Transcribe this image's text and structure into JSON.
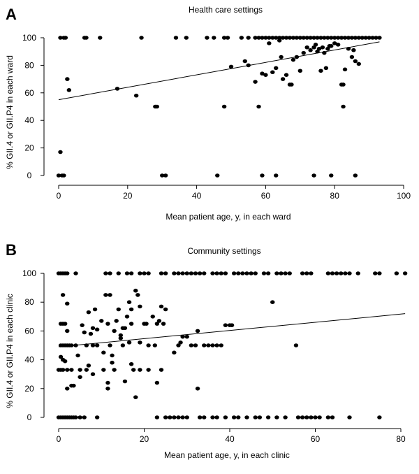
{
  "chart_data": [
    {
      "panel": "A",
      "type": "scatter",
      "title": "Health care settings",
      "xlabel": "Mean patient age, y, in each ward",
      "ylabel": "% GII.4 or GII.P4 in each ward",
      "xlim": [
        0,
        100
      ],
      "ylim": [
        0,
        100
      ],
      "xticks": [
        0,
        20,
        40,
        60,
        80,
        100
      ],
      "yticks": [
        0,
        20,
        40,
        60,
        80,
        100
      ],
      "grid": false,
      "trendline": {
        "x": [
          0,
          93
        ],
        "y": [
          55,
          97
        ]
      },
      "points": [
        [
          0.5,
          100
        ],
        [
          1.5,
          100
        ],
        [
          2,
          100
        ],
        [
          7.5,
          100
        ],
        [
          8,
          100
        ],
        [
          12,
          100
        ],
        [
          24,
          100
        ],
        [
          34,
          100
        ],
        [
          37,
          100
        ],
        [
          43,
          100
        ],
        [
          45,
          100
        ],
        [
          48,
          100
        ],
        [
          49,
          100
        ],
        [
          53,
          100
        ],
        [
          55,
          100
        ],
        [
          57,
          100
        ],
        [
          58,
          100
        ],
        [
          59,
          100
        ],
        [
          60,
          100
        ],
        [
          61,
          100
        ],
        [
          62,
          100
        ],
        [
          63,
          100
        ],
        [
          64,
          100
        ],
        [
          65,
          100
        ],
        [
          66,
          100
        ],
        [
          67,
          100
        ],
        [
          68,
          100
        ],
        [
          69,
          100
        ],
        [
          70,
          100
        ],
        [
          71,
          100
        ],
        [
          72,
          100
        ],
        [
          73,
          100
        ],
        [
          74,
          100
        ],
        [
          75,
          100
        ],
        [
          76,
          100
        ],
        [
          77,
          100
        ],
        [
          78,
          100
        ],
        [
          79,
          100
        ],
        [
          80,
          100
        ],
        [
          81,
          100
        ],
        [
          82,
          100
        ],
        [
          83,
          100
        ],
        [
          84,
          100
        ],
        [
          85,
          100
        ],
        [
          86,
          100
        ],
        [
          87,
          100
        ],
        [
          88,
          100
        ],
        [
          89,
          100
        ],
        [
          90,
          100
        ],
        [
          91,
          100
        ],
        [
          92,
          100
        ],
        [
          93,
          100
        ],
        [
          2.5,
          70
        ],
        [
          3,
          62
        ],
        [
          0.5,
          17
        ],
        [
          17,
          63
        ],
        [
          22.5,
          58
        ],
        [
          28,
          50
        ],
        [
          28.5,
          50
        ],
        [
          48,
          50
        ],
        [
          50,
          79
        ],
        [
          54,
          83
        ],
        [
          55,
          80
        ],
        [
          57,
          68
        ],
        [
          58,
          50
        ],
        [
          59,
          74
        ],
        [
          60,
          73
        ],
        [
          61,
          96
        ],
        [
          62,
          75
        ],
        [
          63,
          78
        ],
        [
          64,
          98
        ],
        [
          64.5,
          86
        ],
        [
          65,
          70
        ],
        [
          66,
          73
        ],
        [
          67,
          66
        ],
        [
          67.5,
          66
        ],
        [
          68,
          84
        ],
        [
          69,
          86
        ],
        [
          70,
          76
        ],
        [
          71,
          89
        ],
        [
          72,
          93
        ],
        [
          73,
          91
        ],
        [
          74,
          93
        ],
        [
          74.5,
          95
        ],
        [
          75,
          90
        ],
        [
          75.5,
          92
        ],
        [
          76,
          76
        ],
        [
          76.5,
          93
        ],
        [
          77,
          89
        ],
        [
          77.5,
          78
        ],
        [
          78,
          92
        ],
        [
          78.5,
          94
        ],
        [
          79,
          94
        ],
        [
          80,
          96
        ],
        [
          81,
          95
        ],
        [
          82,
          66
        ],
        [
          82.5,
          66
        ],
        [
          82.5,
          50
        ],
        [
          83,
          77
        ],
        [
          84,
          92
        ],
        [
          85,
          86
        ],
        [
          85.5,
          91
        ],
        [
          86,
          83
        ],
        [
          87,
          81
        ],
        [
          0,
          0
        ],
        [
          1,
          0
        ],
        [
          1.5,
          0
        ],
        [
          30,
          0
        ],
        [
          31,
          0
        ],
        [
          46,
          0
        ],
        [
          59,
          0
        ],
        [
          63,
          0
        ],
        [
          74,
          0
        ],
        [
          79,
          0
        ],
        [
          86,
          0
        ]
      ]
    },
    {
      "panel": "B",
      "type": "scatter",
      "title": "Community settings",
      "xlabel": "Mean patient age, y, in each clinic",
      "ylabel": "% GII.4 or GII.P4 in each clinic",
      "xlim": [
        0,
        80
      ],
      "ylim": [
        0,
        100
      ],
      "xticks": [
        0,
        20,
        40,
        60,
        80
      ],
      "yticks": [
        0,
        20,
        40,
        60,
        80,
        100
      ],
      "grid": false,
      "trendline": {
        "x": [
          0,
          81
        ],
        "y": [
          49,
          72
        ]
      },
      "points": [
        [
          0,
          100
        ],
        [
          0.5,
          100
        ],
        [
          1,
          100
        ],
        [
          1.5,
          100
        ],
        [
          2,
          100
        ],
        [
          4,
          100
        ],
        [
          11,
          100
        ],
        [
          12,
          100
        ],
        [
          14,
          100
        ],
        [
          16,
          100
        ],
        [
          17,
          100
        ],
        [
          19,
          100
        ],
        [
          20,
          100
        ],
        [
          21,
          100
        ],
        [
          24,
          100
        ],
        [
          25,
          100
        ],
        [
          27,
          100
        ],
        [
          28,
          100
        ],
        [
          29,
          100
        ],
        [
          30,
          100
        ],
        [
          31,
          100
        ],
        [
          32,
          100
        ],
        [
          33,
          100
        ],
        [
          34,
          100
        ],
        [
          36,
          100
        ],
        [
          37,
          100
        ],
        [
          38,
          100
        ],
        [
          39,
          100
        ],
        [
          41,
          100
        ],
        [
          42,
          100
        ],
        [
          43,
          100
        ],
        [
          44,
          100
        ],
        [
          45,
          100
        ],
        [
          46,
          100
        ],
        [
          48,
          100
        ],
        [
          49,
          100
        ],
        [
          51,
          100
        ],
        [
          52,
          100
        ],
        [
          53,
          100
        ],
        [
          54,
          100
        ],
        [
          57,
          100
        ],
        [
          58,
          100
        ],
        [
          59,
          100
        ],
        [
          63,
          100
        ],
        [
          64,
          100
        ],
        [
          65,
          100
        ],
        [
          66,
          100
        ],
        [
          67,
          100
        ],
        [
          68,
          100
        ],
        [
          70,
          100
        ],
        [
          74,
          100
        ],
        [
          75,
          100
        ],
        [
          79,
          100
        ],
        [
          81,
          100
        ],
        [
          1,
          85
        ],
        [
          2,
          79
        ],
        [
          0.5,
          65
        ],
        [
          1,
          65
        ],
        [
          1.5,
          65
        ],
        [
          2,
          60
        ],
        [
          0.5,
          50
        ],
        [
          1,
          50
        ],
        [
          1.5,
          50
        ],
        [
          2,
          50
        ],
        [
          2.5,
          50
        ],
        [
          3,
          50
        ],
        [
          0.5,
          42
        ],
        [
          1,
          40
        ],
        [
          1.5,
          39
        ],
        [
          0,
          33
        ],
        [
          0.5,
          33
        ],
        [
          1,
          33
        ],
        [
          2,
          33
        ],
        [
          3,
          33
        ],
        [
          2,
          20
        ],
        [
          3,
          22
        ],
        [
          3.5,
          22
        ],
        [
          4,
          50
        ],
        [
          4.5,
          43
        ],
        [
          5,
          33
        ],
        [
          5,
          28
        ],
        [
          5.5,
          64
        ],
        [
          6,
          59
        ],
        [
          6.5,
          50
        ],
        [
          6.5,
          33
        ],
        [
          7,
          73
        ],
        [
          7,
          36
        ],
        [
          7.5,
          58
        ],
        [
          8,
          62
        ],
        [
          8,
          50
        ],
        [
          8,
          30
        ],
        [
          8.5,
          75
        ],
        [
          9,
          61
        ],
        [
          9,
          50
        ],
        [
          10,
          67
        ],
        [
          10.5,
          45
        ],
        [
          10.5,
          33
        ],
        [
          11,
          85
        ],
        [
          11.5,
          65
        ],
        [
          11.5,
          24
        ],
        [
          11.5,
          20
        ],
        [
          12,
          85
        ],
        [
          12,
          50
        ],
        [
          12.5,
          43
        ],
        [
          12.5,
          38
        ],
        [
          13,
          60
        ],
        [
          13,
          33
        ],
        [
          13.5,
          67
        ],
        [
          14,
          75
        ],
        [
          14.5,
          57
        ],
        [
          14.5,
          55
        ],
        [
          15,
          62
        ],
        [
          15,
          50
        ],
        [
          15.5,
          62
        ],
        [
          15.5,
          25
        ],
        [
          16,
          70
        ],
        [
          16.5,
          80
        ],
        [
          16.5,
          52
        ],
        [
          17,
          75
        ],
        [
          17,
          65
        ],
        [
          17,
          37
        ],
        [
          17.5,
          33
        ],
        [
          18,
          88
        ],
        [
          18,
          14
        ],
        [
          18.5,
          85
        ],
        [
          19,
          77
        ],
        [
          19,
          52
        ],
        [
          19,
          33
        ],
        [
          20,
          65
        ],
        [
          20.5,
          65
        ],
        [
          21,
          50
        ],
        [
          21,
          33
        ],
        [
          22,
          70
        ],
        [
          22.5,
          50
        ],
        [
          23,
          65
        ],
        [
          23,
          24
        ],
        [
          23.5,
          67
        ],
        [
          24,
          77
        ],
        [
          24,
          33
        ],
        [
          24.5,
          65
        ],
        [
          25,
          75
        ],
        [
          27,
          45
        ],
        [
          28,
          50
        ],
        [
          28.5,
          52
        ],
        [
          29,
          56
        ],
        [
          30,
          56
        ],
        [
          31,
          50
        ],
        [
          32,
          50
        ],
        [
          32.5,
          60
        ],
        [
          32.5,
          20
        ],
        [
          34,
          50
        ],
        [
          35,
          50
        ],
        [
          36,
          50
        ],
        [
          37,
          50
        ],
        [
          38,
          50
        ],
        [
          39,
          64
        ],
        [
          40,
          64
        ],
        [
          40.5,
          64
        ],
        [
          50,
          80
        ],
        [
          55.5,
          50
        ],
        [
          0,
          0
        ],
        [
          0.5,
          0
        ],
        [
          1,
          0
        ],
        [
          1.5,
          0
        ],
        [
          2,
          0
        ],
        [
          2.5,
          0
        ],
        [
          3,
          0
        ],
        [
          3.5,
          0
        ],
        [
          4,
          0
        ],
        [
          5,
          0
        ],
        [
          6,
          0
        ],
        [
          9,
          0
        ],
        [
          23,
          0
        ],
        [
          25,
          0
        ],
        [
          26,
          0
        ],
        [
          27,
          0
        ],
        [
          28,
          0
        ],
        [
          29,
          0
        ],
        [
          30,
          0
        ],
        [
          33,
          0
        ],
        [
          34,
          0
        ],
        [
          36,
          0
        ],
        [
          37,
          0
        ],
        [
          39,
          0
        ],
        [
          41,
          0
        ],
        [
          42,
          0
        ],
        [
          44,
          0
        ],
        [
          46,
          0
        ],
        [
          47,
          0
        ],
        [
          49,
          0
        ],
        [
          51,
          0
        ],
        [
          53,
          0
        ],
        [
          56,
          0
        ],
        [
          57,
          0
        ],
        [
          58,
          0
        ],
        [
          59,
          0
        ],
        [
          60,
          0
        ],
        [
          61,
          0
        ],
        [
          63,
          0
        ],
        [
          64,
          0
        ],
        [
          68,
          0
        ],
        [
          75,
          0
        ]
      ]
    }
  ]
}
